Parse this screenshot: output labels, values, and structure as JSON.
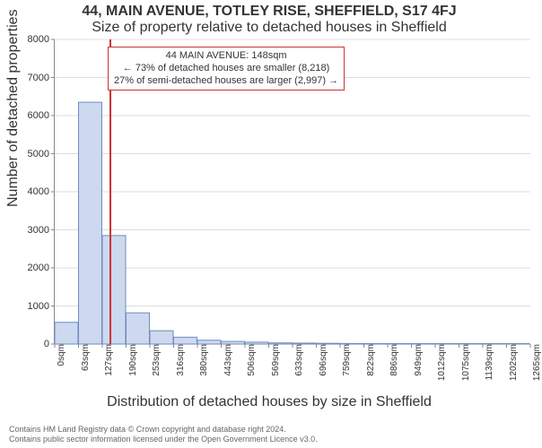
{
  "titles": {
    "line1": "44, MAIN AVENUE, TOTLEY RISE, SHEFFIELD, S17 4FJ",
    "line2": "Size of property relative to detached houses in Sheffield"
  },
  "ylabel": "Number of detached properties",
  "xlabel": "Distribution of detached houses by size in Sheffield",
  "title_fontsize": 13,
  "subtitle_fontsize": 12,
  "axis_label_fontsize": 12,
  "chart": {
    "type": "histogram",
    "background_color": "#ffffff",
    "grid_color": "#dddddd",
    "axis_color": "#888888",
    "bar_fill": "#cdd9ef",
    "bar_stroke": "#6e8bbf",
    "marker_color": "#cc3333",
    "ylim": [
      0,
      8000
    ],
    "ytick_step": 1000,
    "xticks": [
      "0sqm",
      "63sqm",
      "127sqm",
      "190sqm",
      "253sqm",
      "316sqm",
      "380sqm",
      "443sqm",
      "506sqm",
      "569sqm",
      "633sqm",
      "696sqm",
      "759sqm",
      "822sqm",
      "886sqm",
      "949sqm",
      "1012sqm",
      "1075sqm",
      "1139sqm",
      "1202sqm",
      "1265sqm"
    ],
    "values": [
      570,
      6350,
      2850,
      820,
      350,
      180,
      100,
      70,
      50,
      30,
      25,
      20,
      15,
      12,
      10,
      8,
      6,
      5,
      4,
      3
    ],
    "marker_x_sqm": 148,
    "marker_x_label": "148sqm"
  },
  "annotation": {
    "line1": "44 MAIN AVENUE: 148sqm",
    "line2": "← 73% of detached houses are smaller (8,218)",
    "line3": "27% of semi-detached houses are larger (2,997) →",
    "border_color": "#cc3333",
    "font_size": 11
  },
  "footer": {
    "line1": "Contains HM Land Registry data © Crown copyright and database right 2024.",
    "line2": "Contains public sector information licensed under the Open Government Licence v3.0."
  }
}
